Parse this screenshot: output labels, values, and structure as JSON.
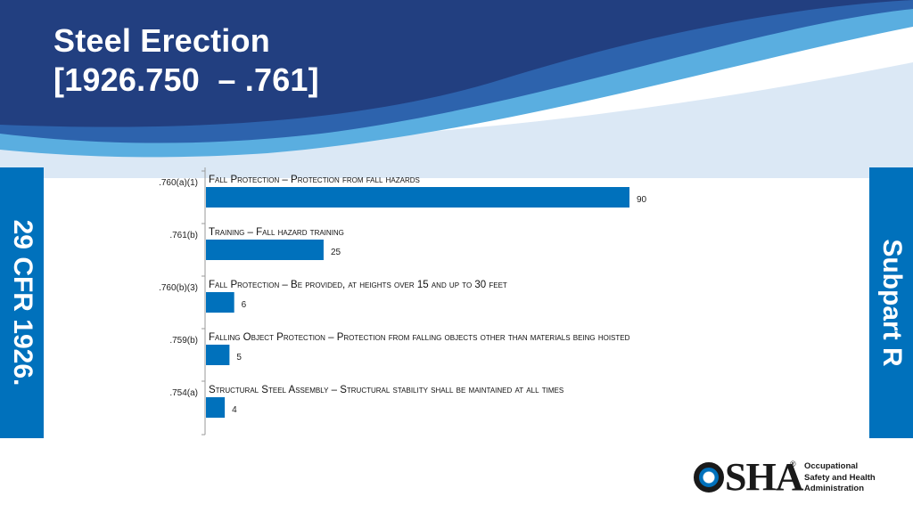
{
  "slide": {
    "title_line1": "Steel Erection",
    "title_line2": "[1926.750  – .761]",
    "left_tab": "29 CFR 1926.",
    "right_tab": "Subpart R"
  },
  "colors": {
    "header_dark": "#22407f",
    "header_mid": "#2e67b2",
    "header_light": "#6fb7e4",
    "header_pale": "#cfe1f2",
    "accent": "#0071bc",
    "bar": "#0071bc"
  },
  "chart_data": {
    "type": "bar",
    "orientation": "horizontal",
    "categories": [
      ".760(a)(1)",
      ".761(b)",
      ".760(b)(3)",
      ".759(b)",
      ".754(a)"
    ],
    "descriptions": [
      "Fall Protection – Protection from fall hazards",
      "Training – Fall hazard training",
      "Fall Protection – Be provided, at heights over 15 and up to 30 feet",
      "Falling Object Protection – Protection from falling objects other than materials being hoisted",
      "Structural Steel Assembly – Structural stability shall be maintained at all times"
    ],
    "values": [
      90,
      25,
      6,
      5,
      4
    ],
    "value_labels": [
      "90",
      "25",
      "6",
      "5",
      "4"
    ],
    "title": "",
    "xlabel": "",
    "ylabel": "",
    "xlim": [
      0,
      90
    ],
    "grid": false,
    "legend": "none"
  },
  "logo": {
    "name": "OSHA",
    "registered": "®",
    "line1": "Occupational",
    "line2": "Safety and Health",
    "line3": "Administration"
  }
}
